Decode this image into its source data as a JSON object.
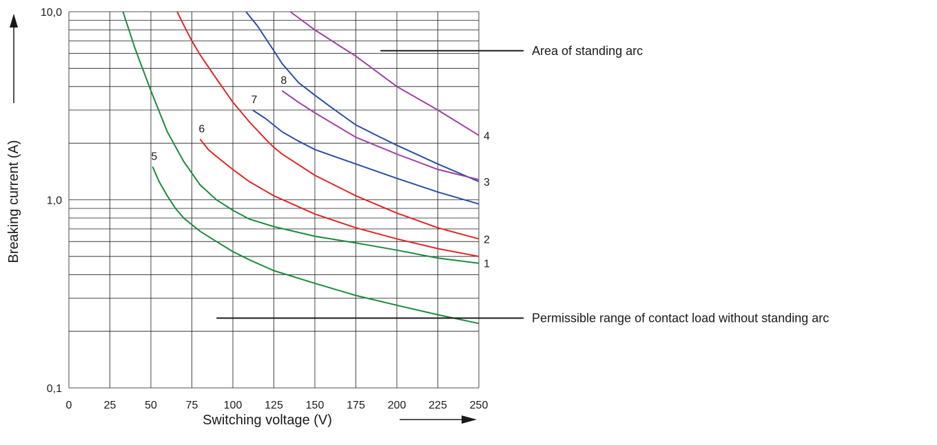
{
  "chart_data": {
    "type": "line",
    "title": "",
    "xlabel": "Switching voltage (V)",
    "ylabel": "Breaking current (A)",
    "xlim": [
      0,
      250
    ],
    "ylim": [
      0.1,
      10
    ],
    "y_scale": "log",
    "grid": true,
    "x_ticks": [
      0,
      25,
      50,
      75,
      100,
      125,
      150,
      175,
      200,
      225,
      250
    ],
    "x_tick_labels": [
      "0",
      "25",
      "50",
      "75",
      "100",
      "125",
      "150",
      "175",
      "200",
      "225",
      "250"
    ],
    "y_ticks": [
      0.1,
      1,
      10
    ],
    "y_tick_labels": [
      "0,1",
      "1,0",
      "10,0"
    ],
    "annotations": [
      {
        "text": "Area of standing arc",
        "x": 190,
        "y": 6.2
      },
      {
        "text": "Permissible range of contact load without standing arc",
        "x": 90,
        "y": 0.235
      }
    ],
    "series": [
      {
        "label": "1",
        "color": "#1a8a3a",
        "x": [
          33,
          40,
          50,
          60,
          70,
          80,
          90,
          100,
          110,
          125,
          150,
          175,
          200,
          225,
          250
        ],
        "y": [
          10,
          6.5,
          3.8,
          2.3,
          1.6,
          1.2,
          1.0,
          0.88,
          0.79,
          0.72,
          0.64,
          0.59,
          0.54,
          0.49,
          0.46
        ]
      },
      {
        "label": "5",
        "color": "#1a8a3a",
        "x": [
          51,
          55,
          60,
          65,
          70,
          80,
          90,
          100,
          110,
          125,
          150,
          175,
          200,
          225,
          250
        ],
        "y": [
          1.5,
          1.25,
          1.05,
          0.9,
          0.8,
          0.68,
          0.6,
          0.53,
          0.48,
          0.42,
          0.36,
          0.31,
          0.275,
          0.245,
          0.22
        ]
      },
      {
        "label": "2",
        "color": "#e02525",
        "x": [
          66,
          70,
          75,
          80,
          90,
          100,
          110,
          120,
          125,
          130,
          150,
          175,
          200,
          225,
          250
        ],
        "y": [
          10,
          8.5,
          7.0,
          5.9,
          4.4,
          3.3,
          2.6,
          2.1,
          1.9,
          1.75,
          1.35,
          1.05,
          0.85,
          0.71,
          0.62
        ]
      },
      {
        "label": "6",
        "color": "#e02525",
        "x": [
          80,
          85,
          90,
          100,
          110,
          125,
          150,
          175,
          200,
          225,
          250
        ],
        "y": [
          2.1,
          1.85,
          1.7,
          1.45,
          1.25,
          1.05,
          0.84,
          0.71,
          0.62,
          0.55,
          0.5
        ]
      },
      {
        "label": "3",
        "color": "#2b4da8",
        "x": [
          108,
          115,
          125,
          130,
          140,
          150,
          160,
          175,
          190,
          200,
          225,
          250
        ],
        "y": [
          10,
          8.4,
          6.2,
          5.3,
          4.2,
          3.6,
          3.1,
          2.5,
          2.15,
          1.95,
          1.55,
          1.25
        ]
      },
      {
        "label": "7",
        "color": "#2b4da8",
        "x": [
          112,
          120,
          130,
          140,
          150,
          175,
          200,
          225,
          250
        ],
        "y": [
          3.0,
          2.7,
          2.3,
          2.05,
          1.85,
          1.55,
          1.3,
          1.1,
          0.95
        ]
      },
      {
        "label": "4",
        "color": "#a03ca6",
        "x": [
          135,
          150,
          175,
          200,
          225,
          250
        ],
        "y": [
          10,
          8.0,
          5.8,
          4.0,
          3.0,
          2.2
        ]
      },
      {
        "label": "8",
        "color": "#a03ca6",
        "x": [
          130,
          140,
          150,
          175,
          200,
          225,
          250
        ],
        "y": [
          3.8,
          3.3,
          2.9,
          2.15,
          1.75,
          1.45,
          1.28
        ]
      }
    ]
  }
}
